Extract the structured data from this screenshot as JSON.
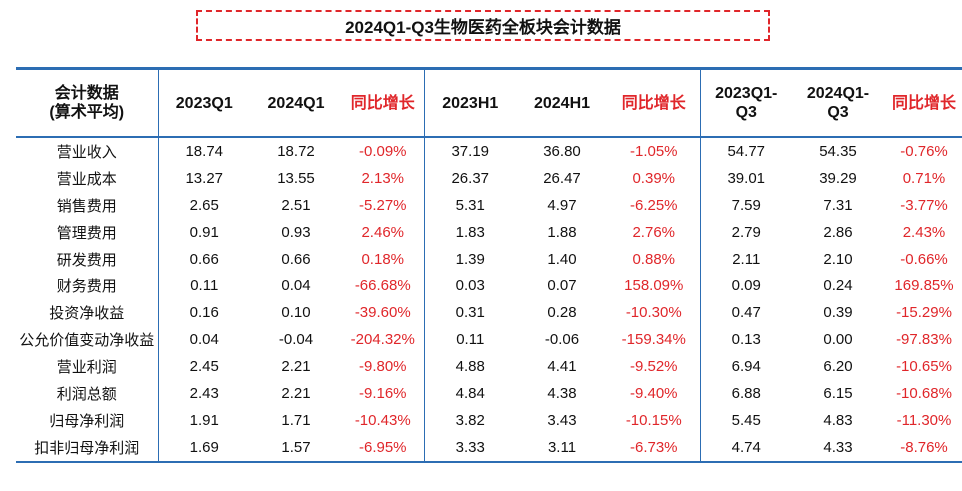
{
  "title": "2024Q1-Q3生物医药全板块会计数据",
  "header": {
    "col0_line1": "会计数据",
    "col0_line2": "(算术平均)",
    "q1_2023": "2023Q1",
    "q1_2024": "2024Q1",
    "growth": "同比增长",
    "h1_2023": "2023H1",
    "h1_2024": "2024H1",
    "q13_2023_line1": "2023Q1-",
    "q13_2023_line2": "Q3",
    "q13_2024_line1": "2024Q1-",
    "q13_2024_line2": "Q3"
  },
  "rows": [
    {
      "label": "营业收入",
      "v": [
        "18.74",
        "18.72",
        "-0.09%",
        "37.19",
        "36.80",
        "-1.05%",
        "54.77",
        "54.35",
        "-0.76%"
      ]
    },
    {
      "label": "营业成本",
      "v": [
        "13.27",
        "13.55",
        "2.13%",
        "26.37",
        "26.47",
        "0.39%",
        "39.01",
        "39.29",
        "0.71%"
      ]
    },
    {
      "label": "销售费用",
      "v": [
        "2.65",
        "2.51",
        "-5.27%",
        "5.31",
        "4.97",
        "-6.25%",
        "7.59",
        "7.31",
        "-3.77%"
      ]
    },
    {
      "label": "管理费用",
      "v": [
        "0.91",
        "0.93",
        "2.46%",
        "1.83",
        "1.88",
        "2.76%",
        "2.79",
        "2.86",
        "2.43%"
      ]
    },
    {
      "label": "研发费用",
      "v": [
        "0.66",
        "0.66",
        "0.18%",
        "1.39",
        "1.40",
        "0.88%",
        "2.11",
        "2.10",
        "-0.66%"
      ]
    },
    {
      "label": "财务费用",
      "v": [
        "0.11",
        "0.04",
        "-66.68%",
        "0.03",
        "0.07",
        "158.09%",
        "0.09",
        "0.24",
        "169.85%"
      ]
    },
    {
      "label": "投资净收益",
      "v": [
        "0.16",
        "0.10",
        "-39.60%",
        "0.31",
        "0.28",
        "-10.30%",
        "0.47",
        "0.39",
        "-15.29%"
      ]
    },
    {
      "label": "公允价值变动净收益",
      "v": [
        "0.04",
        "-0.04",
        "-204.32%",
        "0.11",
        "-0.06",
        "-159.34%",
        "0.13",
        "0.00",
        "-97.83%"
      ]
    },
    {
      "label": "营业利润",
      "v": [
        "2.45",
        "2.21",
        "-9.80%",
        "4.88",
        "4.41",
        "-9.52%",
        "6.94",
        "6.20",
        "-10.65%"
      ]
    },
    {
      "label": "利润总额",
      "v": [
        "2.43",
        "2.21",
        "-9.16%",
        "4.84",
        "4.38",
        "-9.40%",
        "6.88",
        "6.15",
        "-10.68%"
      ]
    },
    {
      "label": "归母净利润",
      "v": [
        "1.91",
        "1.71",
        "-10.43%",
        "3.82",
        "3.43",
        "-10.15%",
        "5.45",
        "4.83",
        "-11.30%"
      ]
    },
    {
      "label": "扣非归母净利润",
      "v": [
        "1.69",
        "1.57",
        "-6.95%",
        "3.33",
        "3.11",
        "-6.73%",
        "4.74",
        "4.33",
        "-8.76%"
      ]
    }
  ],
  "colors": {
    "accent_red": "#e0262a",
    "table_blue": "#2c6db3"
  }
}
